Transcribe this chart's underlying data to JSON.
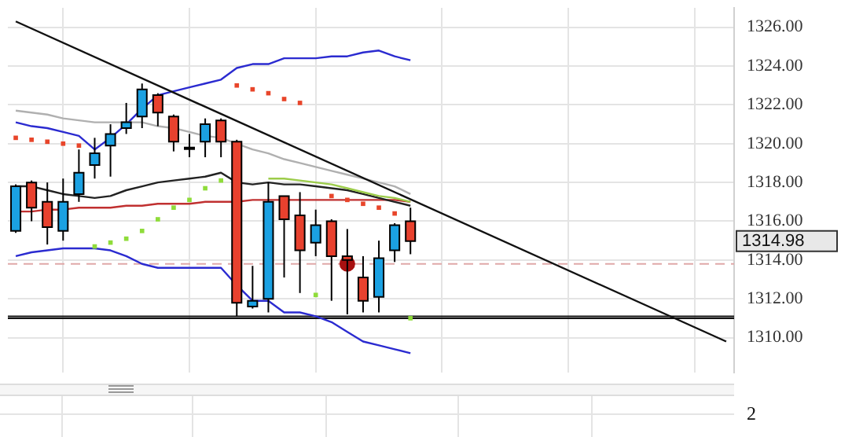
{
  "chart_data": [
    {
      "type": "candlestick",
      "categories": [
        null,
        null,
        null,
        null,
        null,
        null,
        null,
        null,
        null,
        null,
        null,
        null,
        null,
        null,
        null,
        null,
        null,
        null,
        null,
        null,
        null,
        null,
        null,
        null,
        null,
        null,
        null,
        null,
        null,
        null,
        null,
        null,
        null,
        null,
        null,
        null,
        null,
        null,
        null,
        null,
        null,
        null,
        null,
        null,
        null,
        null
      ],
      "ohlc": [
        [
          1315.5,
          1317.9,
          1315.4,
          1317.8
        ],
        [
          1318.0,
          1318.1,
          1316.0,
          1316.7
        ],
        [
          1317.0,
          1318.0,
          1314.8,
          1315.7
        ],
        [
          1315.5,
          1318.2,
          1315.0,
          1317.0
        ],
        [
          1317.4,
          1319.7,
          1317.0,
          1318.5
        ],
        [
          1318.9,
          1320.3,
          1318.2,
          1319.5
        ],
        [
          1319.9,
          1321.0,
          1318.3,
          1320.5
        ],
        [
          1320.8,
          1322.1,
          1320.5,
          1321.1
        ],
        [
          1321.4,
          1323.1,
          1320.8,
          1322.8
        ],
        [
          1322.5,
          1322.6,
          1320.9,
          1321.6
        ],
        [
          1321.4,
          1321.5,
          1319.6,
          1320.1
        ],
        [
          1319.8,
          1320.5,
          1319.3,
          1319.8
        ],
        [
          1320.1,
          1321.3,
          1319.3,
          1321.0
        ],
        [
          1321.2,
          1321.3,
          1319.3,
          1320.1
        ],
        [
          1320.1,
          1320.2,
          1311.1,
          1311.8
        ],
        [
          1311.6,
          1313.7,
          1311.5,
          1311.9
        ],
        [
          1312.0,
          1318.0,
          1311.3,
          1317.0
        ],
        [
          1317.3,
          1317.3,
          1313.1,
          1316.1
        ],
        [
          1316.3,
          1317.5,
          1312.3,
          1314.5
        ],
        [
          1314.9,
          1316.6,
          1314.2,
          1315.8
        ],
        [
          1316.0,
          1316.1,
          1311.9,
          1314.2
        ],
        [
          1314.2,
          1315.6,
          1311.2,
          1314.0
        ],
        [
          1313.1,
          1314.2,
          1311.3,
          1311.9
        ],
        [
          1312.1,
          1315.0,
          1311.3,
          1314.1
        ],
        [
          1314.5,
          1315.9,
          1313.9,
          1315.8
        ],
        [
          1316.0,
          1316.7,
          1314.3,
          1314.98
        ],
        null,
        null,
        null,
        null,
        null,
        null,
        null,
        null,
        null,
        null,
        null,
        null,
        null,
        null,
        null,
        null,
        null,
        null,
        null,
        null
      ],
      "colors": [
        "#1ba1e2",
        "#e8412e",
        "#e8412e",
        "#1ba1e2",
        "#1ba1e2",
        "#1ba1e2",
        "#1ba1e2",
        "#1ba1e2",
        "#1ba1e2",
        "#e8412e",
        "#e8412e",
        "#e8412e",
        "#1ba1e2",
        "#e8412e",
        "#e8412e",
        "#1ba1e2",
        "#1ba1e2",
        "#e8412e",
        "#e8412e",
        "#1ba1e2",
        "#e8412e",
        "#e8412e",
        "#e8412e",
        "#1ba1e2",
        "#1ba1e2",
        "#e8412e",
        null,
        null,
        null,
        null,
        null,
        null,
        null,
        null,
        null,
        null,
        null,
        null,
        null,
        null,
        null,
        null,
        null,
        null,
        null,
        null
      ],
      "series": [
        {
          "type": "line",
          "color": "#2b2bd0",
          "marker": "none",
          "values": [
            1321.1,
            1320.9,
            1320.8,
            1320.6,
            1320.4,
            1319.7,
            1320.3,
            1321.0,
            1321.8,
            1322.5,
            1322.7,
            1322.9,
            1323.1,
            1323.3,
            1323.9,
            1324.1,
            1324.1,
            1324.4,
            1324.4,
            1324.4,
            1324.5,
            1324.5,
            1324.7,
            1324.8,
            1324.5,
            1324.3,
            null,
            null,
            null,
            null,
            null,
            null,
            null,
            null,
            null,
            null,
            null,
            null,
            null,
            null,
            null,
            null,
            null,
            null,
            null,
            null
          ]
        },
        {
          "type": "line",
          "color": "#2b2bd0",
          "marker": "none",
          "values": [
            1314.2,
            1314.4,
            1314.5,
            1314.6,
            1314.6,
            1314.6,
            1314.5,
            1314.2,
            1313.8,
            1313.6,
            1313.6,
            1313.6,
            1313.6,
            1313.6,
            1312.7,
            1311.9,
            1311.9,
            1311.3,
            1311.3,
            1311.1,
            1310.8,
            1310.3,
            1309.8,
            1309.6,
            1309.4,
            1309.2,
            null,
            null,
            null,
            null,
            null,
            null,
            null,
            null,
            null,
            null,
            null,
            null,
            null,
            null,
            null,
            null,
            null,
            null,
            null,
            null
          ]
        },
        {
          "type": "line",
          "color": "#b0b0b0",
          "marker": "none",
          "values": [
            1321.7,
            1321.6,
            1321.5,
            1321.3,
            1321.2,
            1321.1,
            1321.1,
            1321.1,
            1321.1,
            1320.9,
            1320.8,
            1320.6,
            1320.4,
            1320.3,
            1320.0,
            1319.7,
            1319.5,
            1319.2,
            1319.0,
            1318.8,
            1318.6,
            1318.4,
            1318.2,
            1318.0,
            1317.8,
            1317.4,
            null,
            null,
            null,
            null,
            null,
            null,
            null,
            null,
            null,
            null,
            null,
            null,
            null,
            null,
            null,
            null,
            null,
            null,
            null,
            null
          ]
        },
        {
          "type": "line",
          "color": "#c03030",
          "marker": "none",
          "values": [
            1316.5,
            1316.5,
            1316.6,
            1316.6,
            1316.7,
            1316.7,
            1316.7,
            1316.8,
            1316.8,
            1316.9,
            1316.9,
            1316.9,
            1317.0,
            1317.0,
            1317.0,
            1317.1,
            1317.1,
            1317.1,
            1317.1,
            1317.1,
            1317.1,
            1317.1,
            1317.1,
            1317.1,
            1317.1,
            1317.0,
            null,
            null,
            null,
            null,
            null,
            null,
            null,
            null,
            null,
            null,
            null,
            null,
            null,
            null,
            null,
            null,
            null,
            null,
            null,
            null
          ]
        },
        {
          "type": "line",
          "color": "#222222",
          "marker": "none",
          "values": [
            1317.8,
            1317.8,
            1317.6,
            1317.4,
            1317.3,
            1317.2,
            1317.3,
            1317.6,
            1317.8,
            1318.0,
            1318.1,
            1318.2,
            1318.3,
            1318.5,
            1318.0,
            1317.9,
            1318.0,
            1317.9,
            1317.9,
            1317.8,
            1317.7,
            1317.6,
            1317.4,
            1317.2,
            1317.0,
            1316.8,
            null,
            null,
            null,
            null,
            null,
            null,
            null,
            null,
            null,
            null,
            null,
            null,
            null,
            null,
            null,
            null,
            null,
            null,
            null,
            null
          ]
        },
        {
          "type": "line",
          "color": "#9ccc4a",
          "marker": "none",
          "values": [
            null,
            null,
            null,
            null,
            null,
            null,
            null,
            null,
            null,
            null,
            null,
            null,
            null,
            null,
            null,
            null,
            1318.2,
            1318.2,
            1318.1,
            1318.0,
            1317.9,
            1317.7,
            1317.5,
            1317.3,
            1317.2,
            1317.0,
            null,
            null,
            null,
            null,
            null,
            null,
            null,
            null,
            null,
            null,
            null,
            null,
            null,
            null,
            null,
            null,
            null,
            null,
            null,
            null
          ]
        },
        {
          "type": "line",
          "color": "#111111",
          "marker": "none",
          "values": [
            1326.3,
            null,
            null,
            null,
            null,
            null,
            null,
            null,
            null,
            null,
            null,
            null,
            null,
            null,
            null,
            null,
            null,
            null,
            null,
            null,
            null,
            null,
            null,
            null,
            null,
            null,
            null,
            null,
            null,
            null,
            null,
            null,
            null,
            null,
            null,
            null,
            null,
            null,
            null,
            null,
            null,
            null,
            null,
            null,
            null,
            1309.8
          ]
        },
        {
          "type": "scatter",
          "color": "#e8452a",
          "marker": "square",
          "values": [
            1320.3,
            1320.2,
            1320.1,
            1320.0,
            1319.9,
            null,
            null,
            null,
            null,
            null,
            null,
            null,
            null,
            null,
            1323.0,
            1322.8,
            1322.6,
            1322.3,
            1322.1,
            null,
            1317.3,
            1317.1,
            1316.9,
            1316.7,
            1316.4,
            null,
            null,
            null,
            null,
            null,
            null,
            null,
            null,
            null,
            null,
            null,
            null,
            null,
            null,
            null,
            null,
            null,
            null,
            null,
            null,
            null
          ]
        },
        {
          "type": "scatter",
          "color": "#8fdc3a",
          "marker": "square",
          "values": [
            null,
            null,
            null,
            null,
            null,
            1314.7,
            1314.9,
            1315.1,
            1315.5,
            1316.1,
            1316.7,
            1317.1,
            1317.7,
            1318.1,
            null,
            null,
            null,
            null,
            null,
            1312.2,
            null,
            null,
            null,
            null,
            null,
            1311.0,
            null,
            null,
            null,
            null,
            null,
            null,
            null,
            null,
            null,
            null,
            null,
            null,
            null,
            null,
            null,
            null,
            null,
            null,
            null,
            null
          ]
        },
        {
          "type": "scatter",
          "color": "#a81010",
          "marker": "circle",
          "values": [
            null,
            null,
            null,
            null,
            null,
            null,
            null,
            null,
            null,
            null,
            null,
            null,
            null,
            null,
            null,
            null,
            null,
            null,
            null,
            null,
            null,
            1313.8,
            null,
            null,
            null,
            null,
            null,
            null,
            null,
            null,
            null,
            null,
            null,
            null,
            null,
            null,
            null,
            null,
            null,
            null,
            null,
            null,
            null,
            null,
            null,
            null
          ]
        }
      ],
      "ylim": [
        1308.2,
        1327.0
      ],
      "yticks": [
        {
          "value": 1310,
          "label": "1310.00"
        },
        {
          "value": 1312,
          "label": "1312.00"
        },
        {
          "value": 1314,
          "label": "1314.00"
        },
        {
          "value": 1316,
          "label": "1316.00"
        },
        {
          "value": 1318,
          "label": "1318.00"
        },
        {
          "value": 1320,
          "label": "1320.00"
        },
        {
          "value": 1322,
          "label": "1322.00"
        },
        {
          "value": 1324,
          "label": "1324.00"
        },
        {
          "value": 1326,
          "label": "1326.00"
        }
      ],
      "grid": true,
      "tick_labels": "y",
      "ref_lines": [
        {
          "axis": "y",
          "value": 1313.8,
          "color": "#e0a8a8",
          "line_style": "dashed"
        },
        {
          "axis": "y",
          "value": 1311.1,
          "color": "#111111",
          "line_style": "solid"
        },
        {
          "axis": "y",
          "value": 1311.0,
          "color": "#111111",
          "line_style": "solid"
        }
      ],
      "annotations": [
        "1314.98"
      ]
    },
    {
      "type": "other",
      "annotations": [
        "2"
      ]
    }
  ]
}
